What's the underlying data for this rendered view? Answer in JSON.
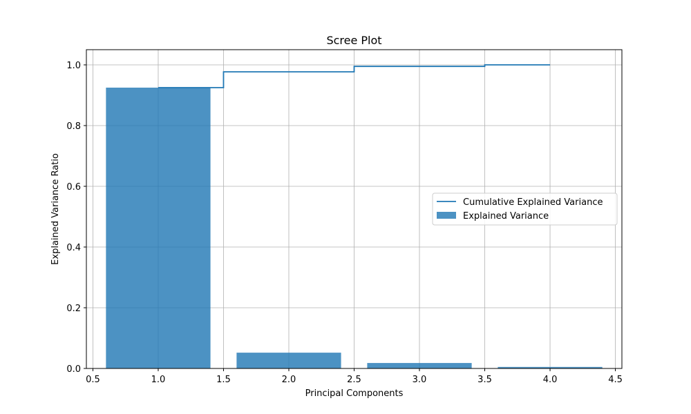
{
  "chart_data": {
    "type": "bar",
    "title": "Scree Plot",
    "xlabel": "Principal Components",
    "ylabel": "Explained Variance Ratio",
    "xlim": [
      0.45,
      4.55
    ],
    "ylim": [
      0.0,
      1.05
    ],
    "x_ticks": [
      0.5,
      1.0,
      1.5,
      2.0,
      2.5,
      3.0,
      3.5,
      4.0,
      4.5
    ],
    "x_tick_labels": [
      "0.5",
      "1.0",
      "1.5",
      "2.0",
      "2.5",
      "3.0",
      "3.5",
      "4.0",
      "4.5"
    ],
    "y_ticks": [
      0.0,
      0.2,
      0.4,
      0.6,
      0.8,
      1.0
    ],
    "y_tick_labels": [
      "0.0",
      "0.2",
      "0.4",
      "0.6",
      "0.8",
      "1.0"
    ],
    "grid": true,
    "legend_position": "center-right",
    "series": [
      {
        "name": "Cumulative Explained Variance",
        "kind": "step",
        "step_where": "mid",
        "x": [
          1,
          2,
          3,
          4
        ],
        "values": [
          0.925,
          0.977,
          0.995,
          1.0
        ],
        "color": "#1f77b4"
      },
      {
        "name": "Explained Variance",
        "kind": "bar",
        "x": [
          1,
          2,
          3,
          4
        ],
        "values": [
          0.925,
          0.052,
          0.018,
          0.005
        ],
        "bar_width": 0.8,
        "color": "#1f77b4",
        "alpha": 0.8
      }
    ],
    "legend": [
      {
        "label": "Cumulative Explained Variance",
        "marker": "line"
      },
      {
        "label": "Explained Variance",
        "marker": "patch"
      }
    ]
  }
}
